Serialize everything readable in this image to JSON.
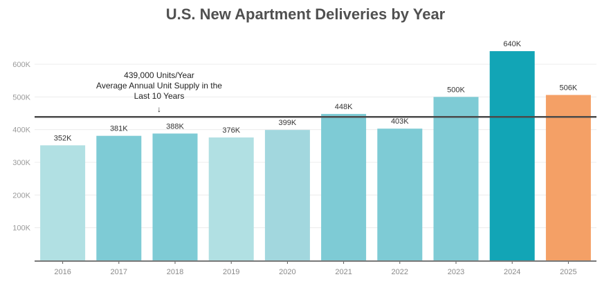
{
  "chart_data": {
    "type": "bar",
    "title": "U.S. New Apartment Deliveries by Year",
    "xlabel": "",
    "ylabel": "",
    "categories": [
      "2016",
      "2017",
      "2018",
      "2019",
      "2020",
      "2021",
      "2022",
      "2023",
      "2024",
      "2025"
    ],
    "values": [
      352000,
      381000,
      388000,
      376000,
      399000,
      448000,
      403000,
      500000,
      640000,
      506000
    ],
    "data_labels": [
      "352K",
      "381K",
      "388K",
      "376K",
      "399K",
      "448K",
      "403K",
      "500K",
      "640K",
      "506K"
    ],
    "bar_colors": [
      "#b1e0e3",
      "#7ecbd5",
      "#7ecbd5",
      "#b1e0e3",
      "#a2d7de",
      "#7ecbd5",
      "#7ecbd5",
      "#7ecbd5",
      "#12a5b6",
      "#f4a066"
    ],
    "ylim": [
      0,
      600000
    ],
    "yticks": [
      100000,
      200000,
      300000,
      400000,
      500000,
      600000
    ],
    "ytick_labels": [
      "100K",
      "200K",
      "300K",
      "400K",
      "500K",
      "600K"
    ],
    "grid": true,
    "reference_line": {
      "value": 439000,
      "color": "#4a4a4a",
      "annotation": [
        "439,000 Units/Year",
        "Average Annual Unit Supply in the",
        "Last 10 Years"
      ],
      "arrow": "↓"
    }
  }
}
